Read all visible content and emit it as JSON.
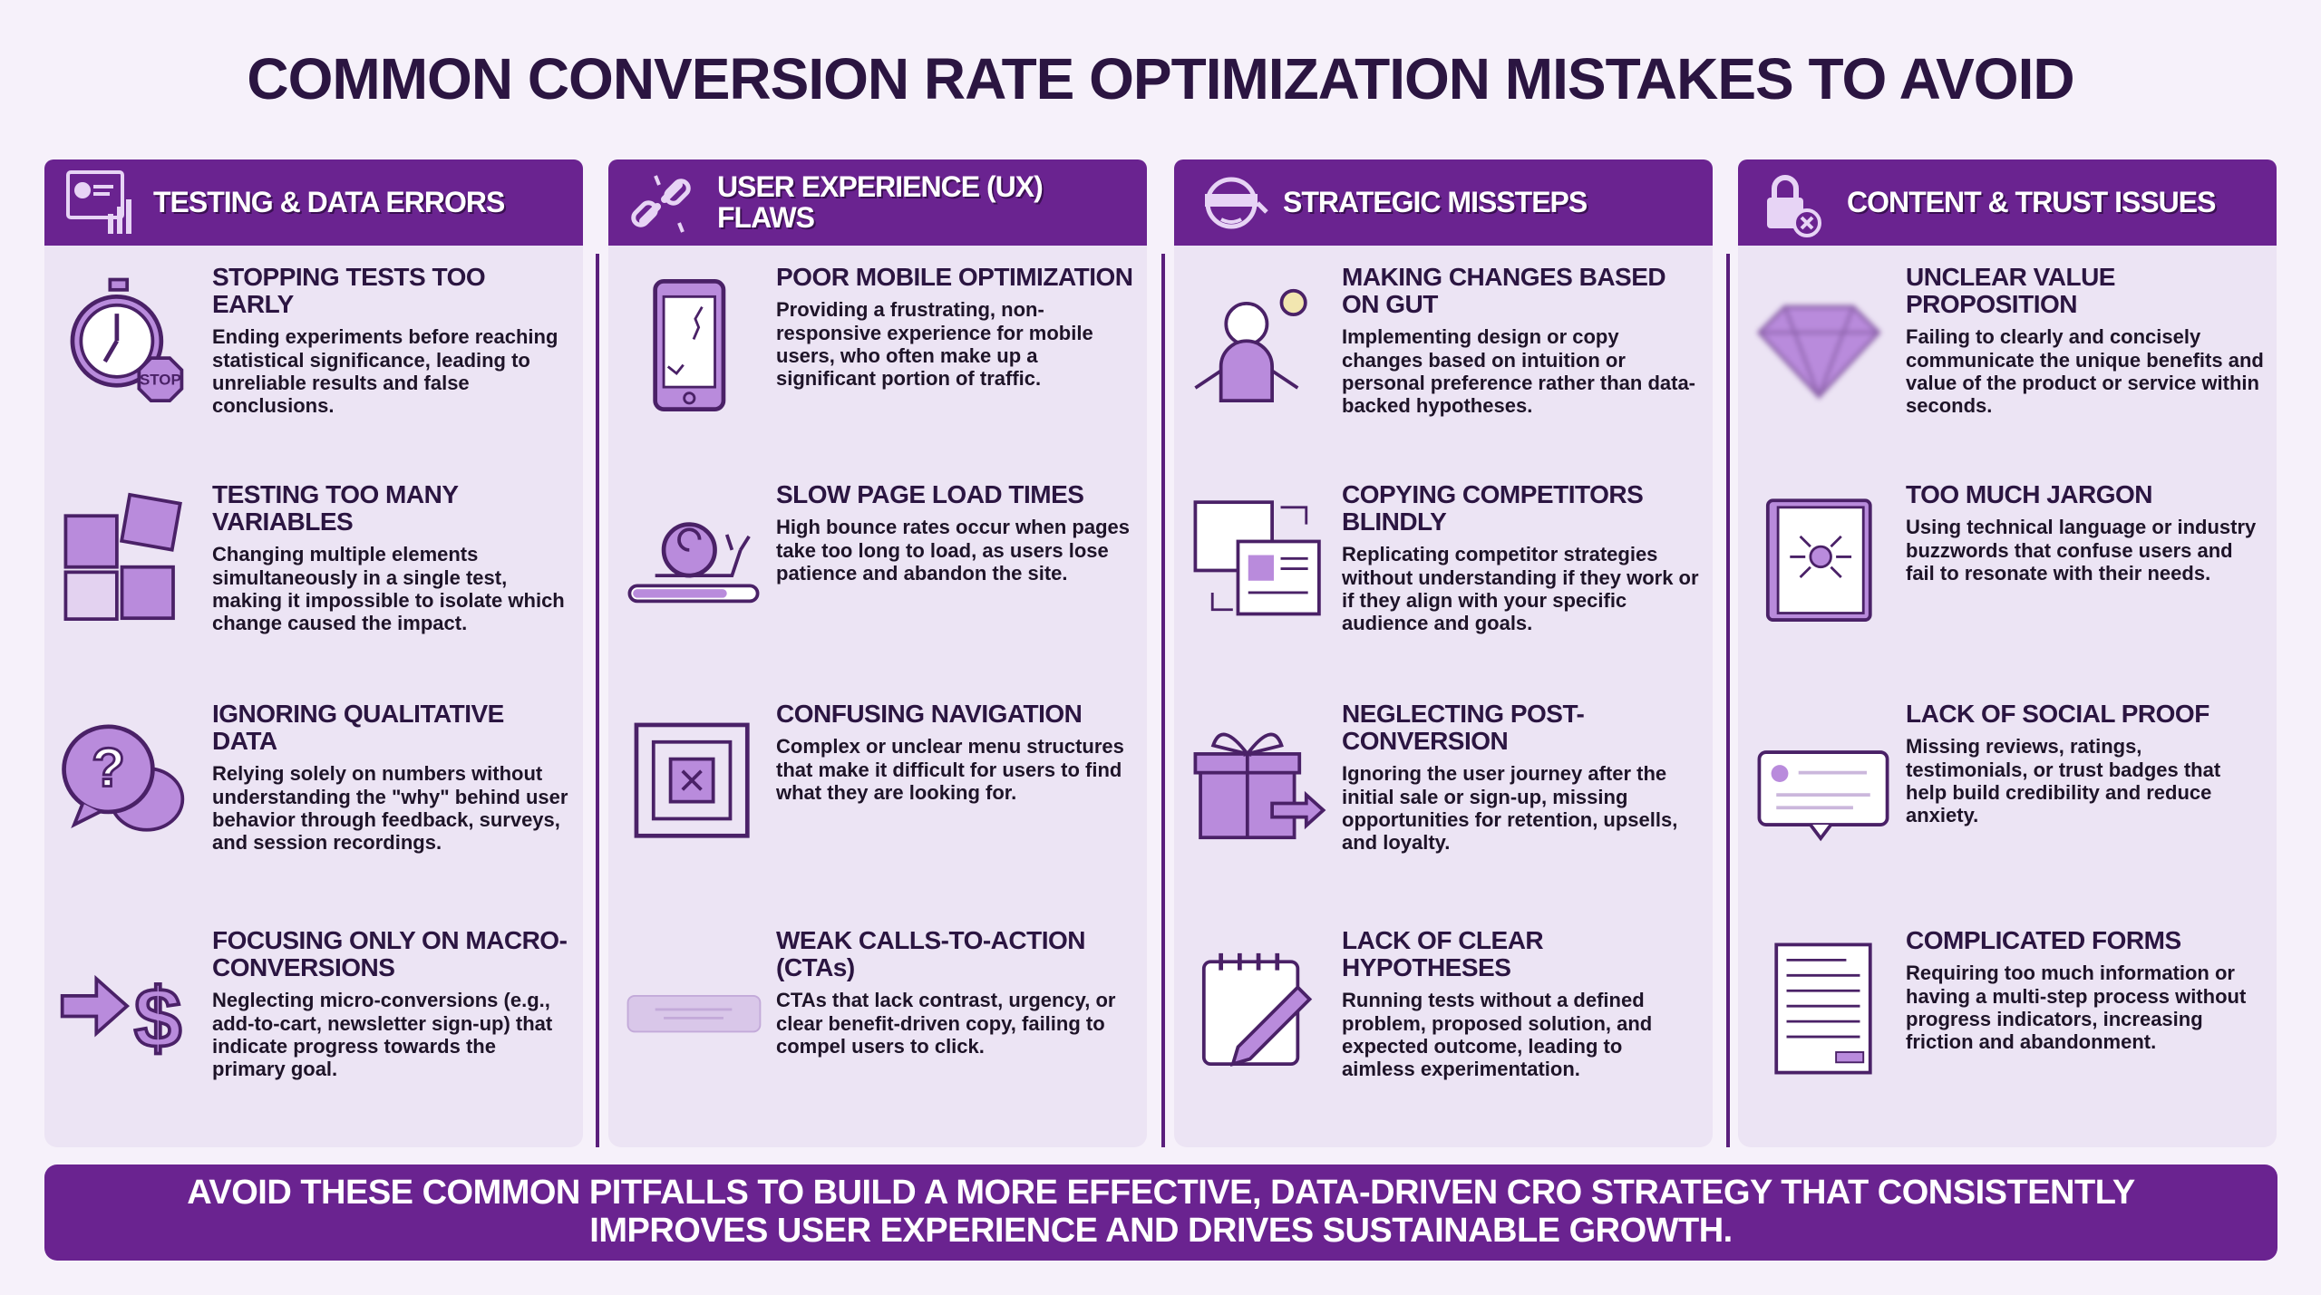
{
  "title": "COMMON CONVERSION RATE OPTIMIZATION MISTAKES TO AVOID",
  "colors": {
    "header": "#6a2390",
    "title": "#2b1541",
    "panel": "#ece4f4",
    "icon_fill": "#b98bdc",
    "icon_stroke": "#4a2167"
  },
  "columns": [
    {
      "title": "TESTING & DATA ERRORS",
      "icon": "analytics-dashboard-icon",
      "items": [
        {
          "icon": "stopwatch-stop-icon",
          "heading": "STOPPING TESTS TOO EARLY",
          "text": "Ending experiments before reaching statistical significance, leading to unreliable results and false conclusions.",
          "icon_label": "STOP"
        },
        {
          "icon": "puzzle-icon",
          "heading": "TESTING TOO MANY VARIABLES",
          "text": "Changing multiple elements simultaneously in a single test, making it impossible to isolate which change caused the impact."
        },
        {
          "icon": "question-speech-bubble-icon",
          "heading": "IGNORING QUALITATIVE DATA",
          "text": "Relying solely on numbers without understanding the \"why\" behind user behavior through feedback, surveys, and session recordings."
        },
        {
          "icon": "arrow-dollar-icon",
          "heading": "FOCUSING ONLY ON MACRO-CONVERSIONS",
          "text": "Neglecting micro-conversions (e.g., add-to-cart, newsletter sign-up) that indicate progress towards the primary goal."
        }
      ]
    },
    {
      "title": "USER EXPERIENCE (UX) FLAWS",
      "icon": "broken-link-icon",
      "items": [
        {
          "icon": "cracked-phone-icon",
          "heading": "POOR MOBILE OPTIMIZATION",
          "text": "Providing a frustrating, non-responsive experience for mobile users, who often make up a significant portion of traffic."
        },
        {
          "icon": "snail-loading-icon",
          "heading": "SLOW PAGE LOAD TIMES",
          "text": "High bounce rates occur when pages take too long to load, as users lose patience and abandon the site."
        },
        {
          "icon": "maze-icon",
          "heading": "CONFUSING NAVIGATION",
          "text": "Complex or unclear menu structures that make it difficult for users to find what they are looking for."
        },
        {
          "icon": "faded-button-icon",
          "heading": "WEAK CALLS-TO-ACTION (CTAs)",
          "text": "CTAs that lack contrast, urgency, or clear benefit-driven copy, failing to compel users to click."
        }
      ]
    },
    {
      "title": "STRATEGIC MISSTEPS",
      "icon": "blindfold-icon",
      "items": [
        {
          "icon": "person-lightbulb-icon",
          "heading": "MAKING CHANGES BASED ON GUT",
          "text": "Implementing design or copy changes based on intuition or personal preference rather than data-backed hypotheses."
        },
        {
          "icon": "copy-pages-icon",
          "heading": "COPYING COMPETITORS BLINDLY",
          "text": "Replicating competitor strategies without understanding if they work or if they align with your specific audience and goals."
        },
        {
          "icon": "gift-arrow-icon",
          "heading": "NEGLECTING POST-CONVERSION",
          "text": "Ignoring the user journey after the initial sale or sign-up, missing opportunities for retention, upsells, and loyalty."
        },
        {
          "icon": "notepad-pencil-icon",
          "heading": "LACK OF CLEAR HYPOTHESES",
          "text": "Running tests without a defined problem, proposed solution, and expected outcome, leading to aimless experimentation."
        }
      ]
    },
    {
      "title": "CONTENT & TRUST ISSUES",
      "icon": "lock-x-icon",
      "items": [
        {
          "icon": "blurry-diamond-icon",
          "heading": "UNCLEAR VALUE PROPOSITION",
          "text": "Failing to clearly and concisely communicate the unique benefits and value of the product or service within seconds."
        },
        {
          "icon": "jargon-book-icon",
          "heading": "TOO MUCH JARGON",
          "text": "Using technical language or industry buzzwords that confuse users and fail to resonate with their needs."
        },
        {
          "icon": "empty-review-bubble-icon",
          "heading": "LACK OF SOCIAL PROOF",
          "text": "Missing reviews, ratings, testimonials, or trust badges that help build credibility and reduce anxiety."
        },
        {
          "icon": "long-form-icon",
          "heading": "COMPLICATED FORMS",
          "text": "Requiring too much information or having a multi-step process without progress indicators, increasing friction and abandonment."
        }
      ]
    }
  ],
  "footer": "AVOID THESE COMMON PITFALLS TO BUILD A MORE EFFECTIVE, DATA-DRIVEN CRO STRATEGY THAT CONSISTENTLY IMPROVES USER EXPERIENCE AND DRIVES SUSTAINABLE GROWTH."
}
